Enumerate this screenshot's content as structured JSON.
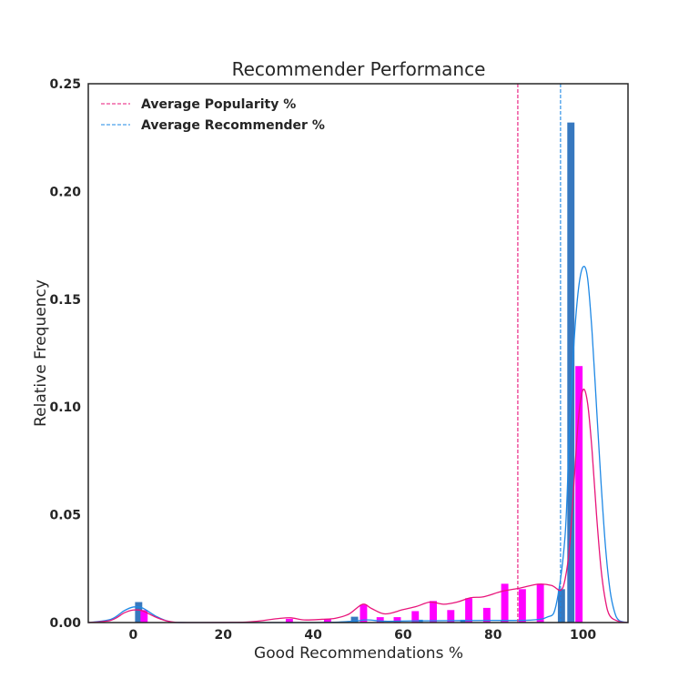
{
  "chart_data": {
    "type": "bar",
    "title": "Recommender Performance",
    "xlabel": "Good Recommendations %",
    "ylabel": "Relative Frequency",
    "xlim": [
      -10,
      110
    ],
    "ylim": [
      0,
      0.25
    ],
    "xticks": [
      0,
      20,
      40,
      60,
      80,
      100
    ],
    "xtick_labels": [
      "0",
      "20",
      "40",
      "60",
      "80",
      "100"
    ],
    "yticks": [
      0,
      0.05,
      0.1,
      0.15,
      0.2,
      0.25
    ],
    "ytick_labels": [
      "0.00",
      "0.05",
      "0.10",
      "0.15",
      "0.20",
      "0.25"
    ],
    "grid": false,
    "legend_position": "top-left",
    "bar_width": 1.6,
    "series": [
      {
        "name": "Recommender",
        "color": "#3778bf",
        "kde_color": "#1e88e5",
        "bars": [
          {
            "x": 1.2,
            "y": 0.0095
          },
          {
            "x": 49.2,
            "y": 0.0027
          },
          {
            "x": 63.6,
            "y": 0.0013
          },
          {
            "x": 73.5,
            "y": 0.0013
          },
          {
            "x": 82.5,
            "y": 0.001
          },
          {
            "x": 95.2,
            "y": 0.0155
          },
          {
            "x": 97.3,
            "y": 0.232
          }
        ],
        "kde": [
          [
            -10,
            0.0
          ],
          [
            -5,
            0.0015
          ],
          [
            -2,
            0.0055
          ],
          [
            0,
            0.0072
          ],
          [
            2,
            0.0068
          ],
          [
            5,
            0.003
          ],
          [
            8,
            0.0005
          ],
          [
            12,
            0.0
          ],
          [
            40,
            0.0
          ],
          [
            48,
            0.0005
          ],
          [
            52,
            0.0012
          ],
          [
            56,
            0.0006
          ],
          [
            62,
            0.0008
          ],
          [
            70,
            0.0009
          ],
          [
            80,
            0.001
          ],
          [
            88,
            0.0011
          ],
          [
            92,
            0.0025
          ],
          [
            94,
            0.008
          ],
          [
            96,
            0.04
          ],
          [
            97,
            0.09
          ],
          [
            98,
            0.13
          ],
          [
            99,
            0.155
          ],
          [
            100,
            0.165
          ],
          [
            101,
            0.16
          ],
          [
            102,
            0.135
          ],
          [
            103,
            0.1
          ],
          [
            104,
            0.065
          ],
          [
            105,
            0.035
          ],
          [
            106,
            0.015
          ],
          [
            107,
            0.005
          ],
          [
            108,
            0.001
          ],
          [
            110,
            0.0
          ]
        ]
      },
      {
        "name": "Popularity",
        "color": "#ff00ff",
        "kde_color": "#e8147a",
        "bars": [
          {
            "x": 2.4,
            "y": 0.0058
          },
          {
            "x": 34.7,
            "y": 0.0017
          },
          {
            "x": 43.2,
            "y": 0.0017
          },
          {
            "x": 51.2,
            "y": 0.0083
          },
          {
            "x": 54.9,
            "y": 0.0025
          },
          {
            "x": 58.7,
            "y": 0.0025
          },
          {
            "x": 62.7,
            "y": 0.0053
          },
          {
            "x": 66.7,
            "y": 0.01
          },
          {
            "x": 70.6,
            "y": 0.0058
          },
          {
            "x": 74.6,
            "y": 0.0113
          },
          {
            "x": 78.6,
            "y": 0.0068
          },
          {
            "x": 82.6,
            "y": 0.018
          },
          {
            "x": 86.5,
            "y": 0.0155
          },
          {
            "x": 90.5,
            "y": 0.018
          },
          {
            "x": 99.1,
            "y": 0.119
          }
        ],
        "kde": [
          [
            -10,
            0.0
          ],
          [
            -5,
            0.001
          ],
          [
            -2,
            0.0045
          ],
          [
            0,
            0.0058
          ],
          [
            2,
            0.0055
          ],
          [
            5,
            0.0025
          ],
          [
            8,
            0.0005
          ],
          [
            12,
            0.0
          ],
          [
            25,
            0.0002
          ],
          [
            32,
            0.0018
          ],
          [
            35,
            0.0022
          ],
          [
            38,
            0.0012
          ],
          [
            42,
            0.0015
          ],
          [
            45,
            0.002
          ],
          [
            48,
            0.004
          ],
          [
            51,
            0.0085
          ],
          [
            53,
            0.0065
          ],
          [
            56,
            0.004
          ],
          [
            60,
            0.006
          ],
          [
            63,
            0.0075
          ],
          [
            66,
            0.0095
          ],
          [
            69,
            0.0085
          ],
          [
            72,
            0.0095
          ],
          [
            75,
            0.0115
          ],
          [
            78,
            0.012
          ],
          [
            82,
            0.0145
          ],
          [
            86,
            0.016
          ],
          [
            90,
            0.0178
          ],
          [
            93,
            0.0172
          ],
          [
            95,
            0.015
          ],
          [
            96,
            0.02
          ],
          [
            97,
            0.035
          ],
          [
            98,
            0.065
          ],
          [
            99,
            0.095
          ],
          [
            100,
            0.108
          ],
          [
            101,
            0.102
          ],
          [
            102,
            0.08
          ],
          [
            103,
            0.05
          ],
          [
            104,
            0.025
          ],
          [
            105,
            0.01
          ],
          [
            106,
            0.003
          ],
          [
            108,
            0.0005
          ],
          [
            110,
            0.0
          ]
        ]
      }
    ],
    "vlines": [
      {
        "name": "Average Popularity %",
        "x": 85.5,
        "color": "#e8147a",
        "style": "dashed"
      },
      {
        "name": "Average Recommender %",
        "x": 95.0,
        "color": "#1e88e5",
        "style": "dashed"
      }
    ],
    "legend": [
      {
        "label": "Average Popularity %",
        "color": "#e8147a"
      },
      {
        "label": "Average Recommender %",
        "color": "#1e88e5"
      }
    ]
  }
}
